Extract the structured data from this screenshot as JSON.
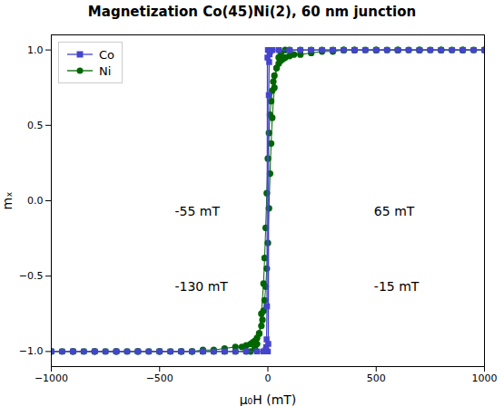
{
  "chart_data": {
    "type": "line",
    "title": "Magnetization Co(45)Ni(2), 60 nm junction",
    "xlabel": "μ₀H (mT)",
    "ylabel": "mₓ",
    "xlim": [
      -1000,
      1000
    ],
    "ylim": [
      -1.1,
      1.1
    ],
    "xticks": [
      {
        "value": -1000,
        "label": "−1000"
      },
      {
        "value": -500,
        "label": "−500"
      },
      0,
      500,
      1000
    ],
    "yticks": [
      {
        "value": -1.0,
        "label": "−1.0"
      },
      {
        "value": -0.5,
        "label": "−0.5"
      },
      {
        "value": 0.0,
        "label": "0.0"
      },
      {
        "value": 0.5,
        "label": "0.5"
      },
      {
        "value": 1.0,
        "label": "1.0"
      }
    ],
    "grid": false,
    "legend": "upper left",
    "annotations": [
      {
        "text": "-55 mT",
        "x": -430,
        "y": -0.04
      },
      {
        "text": "-130 mT",
        "x": -430,
        "y": -0.54
      },
      {
        "text": "65 mT",
        "x": 490,
        "y": -0.04
      },
      {
        "text": "-15 mT",
        "x": 490,
        "y": -0.54
      }
    ],
    "series": [
      {
        "name": "Co",
        "color": "#4444cc",
        "marker": "square",
        "x": [
          -1000,
          -950,
          -900,
          -850,
          -800,
          -750,
          -700,
          -650,
          -600,
          -550,
          -500,
          -450,
          -400,
          -350,
          -300,
          -250,
          -200,
          -150,
          -100,
          -50,
          -20,
          -10,
          -5,
          0,
          2,
          4,
          6,
          8,
          10,
          15,
          20,
          50,
          100,
          200,
          300,
          400,
          500,
          600,
          700,
          800,
          900,
          1000,
          null,
          1000,
          950,
          900,
          850,
          800,
          750,
          700,
          650,
          600,
          550,
          500,
          450,
          400,
          350,
          300,
          250,
          200,
          150,
          100,
          50,
          20,
          10,
          5,
          0,
          -2,
          -4,
          -6,
          -8,
          -10,
          -15,
          -20,
          -50,
          -100,
          -200,
          -300,
          -400,
          -500,
          -600,
          -700,
          -800,
          -900,
          -1000
        ],
        "values": [
          -1.0,
          -1.0,
          -1.0,
          -1.0,
          -1.0,
          -1.0,
          -1.0,
          -1.0,
          -1.0,
          -1.0,
          -1.0,
          -1.0,
          -1.0,
          -1.0,
          -1.0,
          -1.0,
          -1.0,
          -1.0,
          -1.0,
          -1.0,
          -1.0,
          -1.0,
          -1.0,
          -1.0,
          -0.95,
          0.7,
          0.92,
          0.97,
          0.99,
          1.0,
          1.0,
          1.0,
          1.0,
          1.0,
          1.0,
          1.0,
          1.0,
          1.0,
          1.0,
          1.0,
          1.0,
          1.0,
          null,
          1.0,
          1.0,
          1.0,
          1.0,
          1.0,
          1.0,
          1.0,
          1.0,
          1.0,
          1.0,
          1.0,
          1.0,
          1.0,
          1.0,
          1.0,
          1.0,
          1.0,
          1.0,
          1.0,
          1.0,
          1.0,
          1.0,
          1.0,
          1.0,
          0.95,
          -0.7,
          -0.92,
          -0.97,
          -0.99,
          -1.0,
          -1.0,
          -1.0,
          -1.0,
          -1.0,
          -1.0,
          -1.0,
          -1.0,
          -1.0,
          -1.0,
          -1.0,
          -1.0,
          -1.0
        ]
      },
      {
        "name": "Ni",
        "color": "#006600",
        "marker": "circle",
        "x": [
          -1000,
          -950,
          -900,
          -850,
          -800,
          -750,
          -700,
          -650,
          -600,
          -550,
          -500,
          -450,
          -400,
          -350,
          -300,
          -250,
          -200,
          -150,
          -100,
          -80,
          -60,
          -50,
          -40,
          -30,
          -20,
          -15,
          -10,
          -5,
          0,
          5,
          10,
          15,
          20,
          25,
          30,
          40,
          50,
          60,
          70,
          80,
          100,
          120,
          150,
          200,
          250,
          300,
          350,
          400,
          500,
          600,
          700,
          800,
          900,
          1000,
          null,
          1000,
          950,
          900,
          850,
          800,
          750,
          700,
          650,
          600,
          550,
          500,
          450,
          400,
          350,
          300,
          250,
          200,
          150,
          100,
          80,
          60,
          50,
          40,
          30,
          20,
          15,
          10,
          5,
          0,
          -5,
          -10,
          -15,
          -20,
          -25,
          -30,
          -40,
          -50,
          -60,
          -70,
          -80,
          -100,
          -120,
          -150,
          -200,
          -250,
          -300,
          -350,
          -400,
          -500,
          -600,
          -700,
          -800,
          -900,
          -1000
        ],
        "values": [
          -1.0,
          -1.0,
          -1.0,
          -1.0,
          -1.0,
          -1.0,
          -1.0,
          -1.0,
          -1.0,
          -1.0,
          -1.0,
          -1.0,
          -1.0,
          -1.0,
          -1.0,
          -1.0,
          -1.0,
          -1.0,
          -1.0,
          -1.0,
          -0.98,
          -0.95,
          -0.88,
          -0.75,
          -0.55,
          -0.38,
          -0.18,
          0.05,
          0.28,
          0.45,
          0.57,
          0.66,
          0.73,
          0.79,
          0.83,
          0.88,
          0.91,
          0.93,
          0.94,
          0.95,
          0.96,
          0.97,
          0.97,
          0.98,
          0.99,
          0.99,
          1.0,
          1.0,
          1.0,
          1.0,
          1.0,
          1.0,
          1.0,
          1.0,
          null,
          1.0,
          1.0,
          1.0,
          1.0,
          1.0,
          1.0,
          1.0,
          1.0,
          1.0,
          1.0,
          1.0,
          1.0,
          1.0,
          1.0,
          1.0,
          1.0,
          1.0,
          1.0,
          1.0,
          1.0,
          0.98,
          0.95,
          0.88,
          0.75,
          0.55,
          0.38,
          0.18,
          -0.05,
          -0.28,
          -0.45,
          -0.57,
          -0.66,
          -0.73,
          -0.79,
          -0.83,
          -0.88,
          -0.91,
          -0.93,
          -0.94,
          -0.95,
          -0.96,
          -0.97,
          -0.97,
          -0.98,
          -0.99,
          -0.99,
          -1.0,
          -1.0,
          -1.0,
          -1.0,
          -1.0,
          -1.0,
          -1.0,
          -1.0
        ]
      }
    ]
  }
}
